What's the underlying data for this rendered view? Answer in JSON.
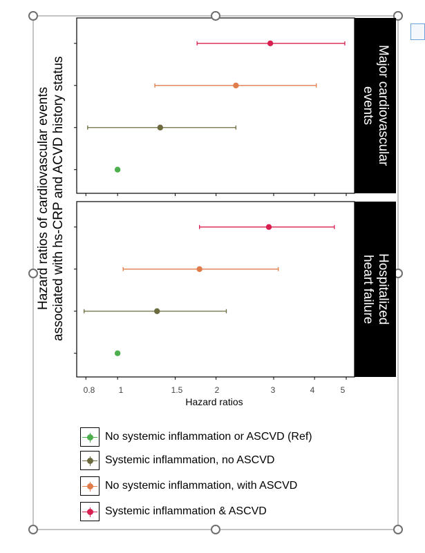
{
  "chart_data": {
    "type": "forest",
    "ylabel_lines": [
      "Hazard ratios of cardiovascular events",
      "associated with hs-CRP and ACVD history status"
    ],
    "xlabel": "Hazard ratios",
    "x_scale": "log",
    "xlim": [
      0.75,
      5.3
    ],
    "x_ticks": [
      {
        "value": 0.8,
        "label": "0.8"
      },
      {
        "value": 1,
        "label": "1"
      },
      {
        "value": 1.5,
        "label": "1.5"
      },
      {
        "value": 2,
        "label": "2"
      },
      {
        "value": 3,
        "label": "3"
      },
      {
        "value": 4,
        "label": "4"
      },
      {
        "value": 5,
        "label": "5"
      }
    ],
    "panels": [
      {
        "label_lines": [
          "Major cardiovascular",
          "events"
        ],
        "points": [
          {
            "series": 0,
            "hr": 1.0,
            "lo": null,
            "hi": null
          },
          {
            "series": 1,
            "hr": 1.35,
            "lo": 0.81,
            "hi": 2.3
          },
          {
            "series": 2,
            "hr": 2.3,
            "lo": 1.3,
            "hi": 4.05
          },
          {
            "series": 3,
            "hr": 2.93,
            "lo": 1.75,
            "hi": 4.95
          }
        ]
      },
      {
        "label_lines": [
          "Hospitalized",
          "heart failure"
        ],
        "points": [
          {
            "series": 0,
            "hr": 1.0,
            "lo": null,
            "hi": null
          },
          {
            "series": 1,
            "hr": 1.32,
            "lo": 0.79,
            "hi": 2.15
          },
          {
            "series": 2,
            "hr": 1.78,
            "lo": 1.04,
            "hi": 3.1
          },
          {
            "series": 3,
            "hr": 2.9,
            "lo": 1.78,
            "hi": 4.6
          }
        ]
      }
    ],
    "series": [
      {
        "name": "No systemic inflammation or ASCVD (Ref)",
        "color": "#4cae4c"
      },
      {
        "name": "Systemic inflammation, no ASCVD",
        "color": "#6b6b3f"
      },
      {
        "name": "No systemic inflammation, with ASCVD",
        "color": "#e07c4a"
      },
      {
        "name": "Systemic inflammation & ASCVD",
        "color": "#d91f4f"
      }
    ]
  }
}
